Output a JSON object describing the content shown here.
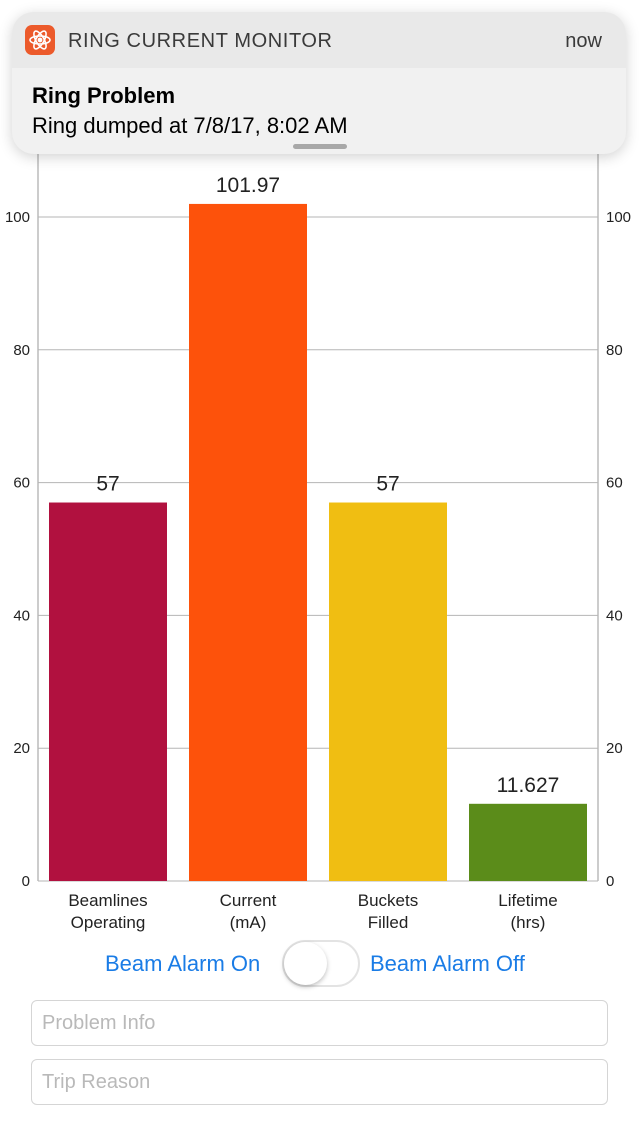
{
  "notification": {
    "app_name": "RING CURRENT MONITOR",
    "time": "now",
    "title": "Ring Problem",
    "body": "Ring dumped at 7/8/17, 8:02 AM",
    "app_icon": "radiation-atom-icon",
    "accent": "#ec5a2b"
  },
  "chart_data": {
    "type": "bar",
    "categories": [
      "Beamlines\nOperating",
      "Current\n(mA)",
      "Buckets\nFilled",
      "Lifetime\n(hrs)"
    ],
    "values": [
      57,
      101.97,
      57,
      11.627
    ],
    "value_labels": [
      "57",
      "101.97",
      "57",
      "11.627"
    ],
    "colors": [
      "#b1113f",
      "#fd520b",
      "#f0be12",
      "#5b8c1a"
    ],
    "ylim": [
      0,
      100
    ],
    "yticks": [
      "0",
      "20",
      "40",
      "60",
      "80",
      "100"
    ],
    "grid": true,
    "right_axis": true
  },
  "controls": {
    "alarm_on_label": "Beam Alarm On",
    "alarm_off_label": "Beam Alarm Off",
    "toggle_on": false,
    "problem_info_placeholder": "Problem Info",
    "trip_reason_placeholder": "Trip Reason",
    "accent": "#1a7ce6"
  }
}
